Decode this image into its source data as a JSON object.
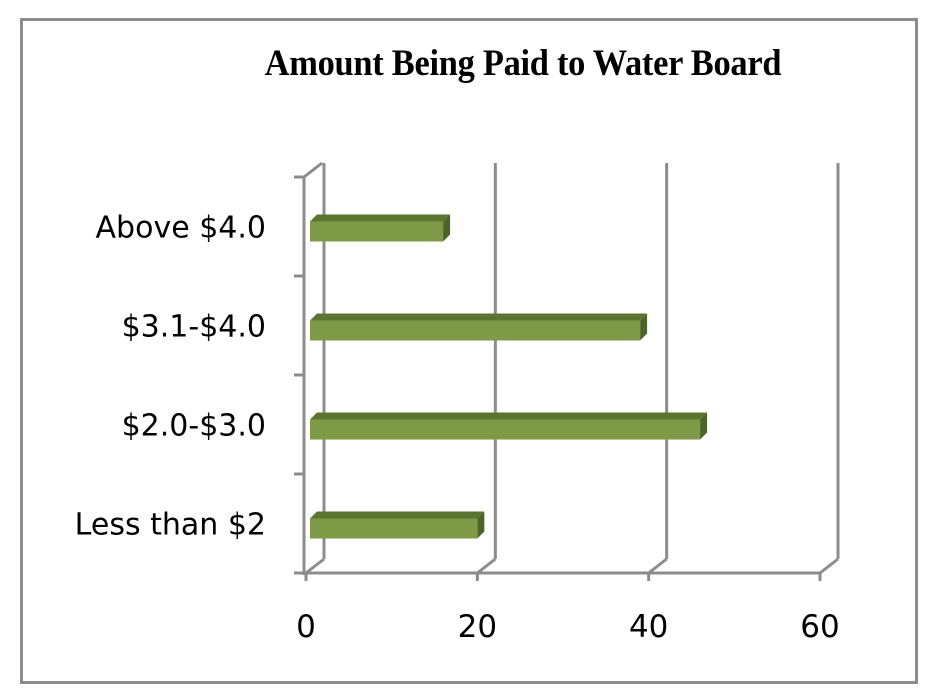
{
  "chart_data": {
    "type": "bar",
    "orientation": "horizontal",
    "style": "3d-clustered-bar",
    "title": "Amount Being Paid to Water Board",
    "xlabel": "",
    "ylabel": "",
    "categories": [
      "Less than $2",
      "$2.0-$3.0",
      "$3.1-$4.0",
      "Above $4.0"
    ],
    "values": [
      20,
      46,
      39,
      16
    ],
    "xlim": [
      0,
      60
    ],
    "x_ticks": [
      "0",
      "20",
      "40",
      "60"
    ],
    "grid": "vertical major gridlines",
    "legend": "none",
    "bar_color": "#7f9a47",
    "bar_dark_color": "#5b7530",
    "axis_color": "#8c8c8c"
  }
}
